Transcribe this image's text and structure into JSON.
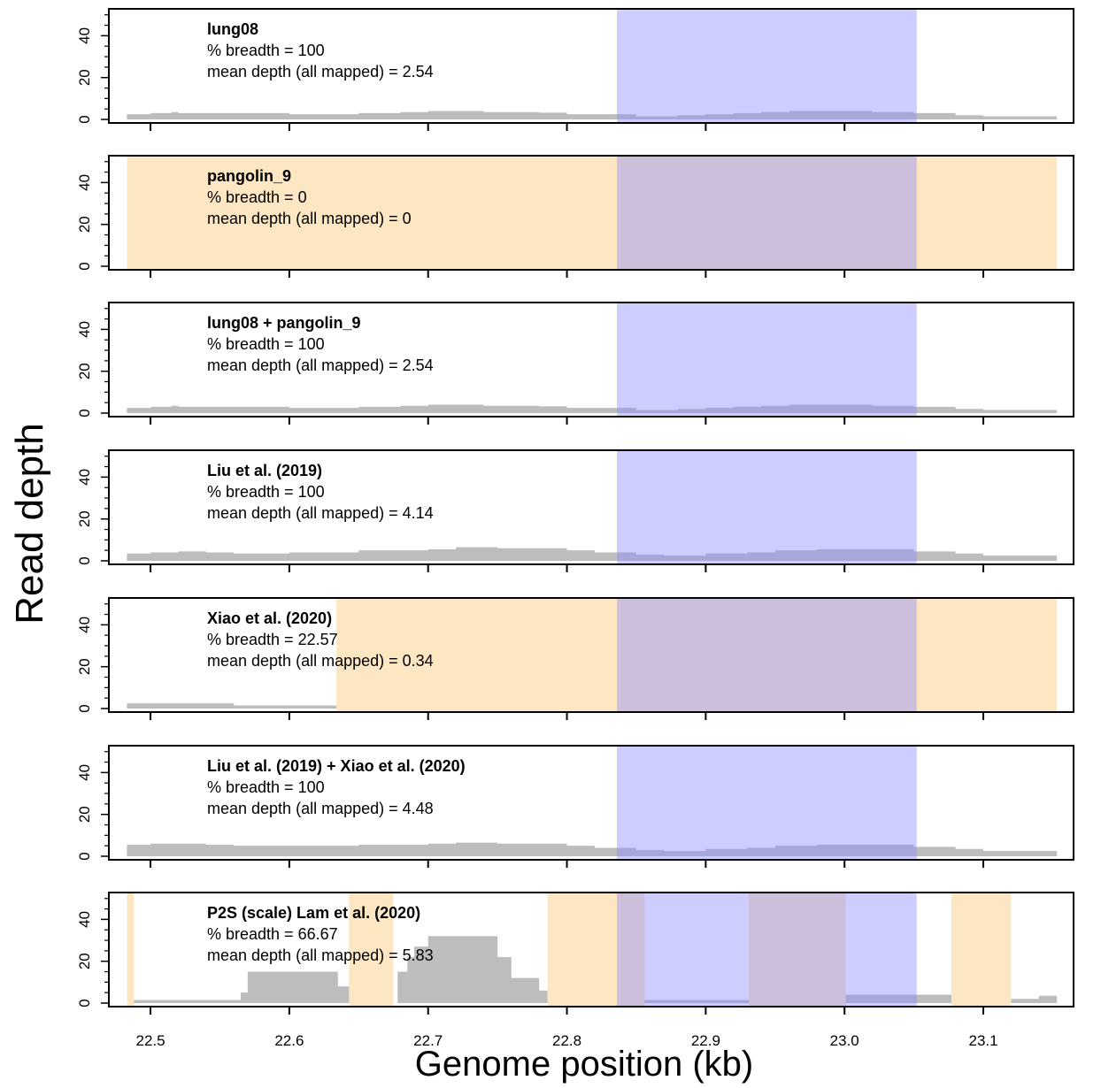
{
  "figure": {
    "ylabel": "Read depth",
    "xlabel": "Genome position (kb)",
    "colors": {
      "depth": "#bdbdbd",
      "no_coverage": "#fde3b8",
      "highlight": "#8888ff",
      "axis": "#000000"
    }
  },
  "chart_data": [
    {
      "type": "area",
      "title": "lung08",
      "stats": [
        "% breadth = 100",
        "mean depth (all mapped) = 2.54"
      ],
      "xlim": [
        22.47,
        23.165
      ],
      "ylim": [
        0,
        52
      ],
      "x_ticks": [
        22.5,
        22.6,
        22.7,
        22.8,
        22.9,
        23.0,
        23.1
      ],
      "y_ticks": [
        0,
        20,
        40
      ],
      "y_tick_labels": [
        "0",
        "20",
        "40"
      ],
      "highlight_region": [
        22.836,
        23.052
      ],
      "uncovered_regions": [],
      "depth": {
        "x": [
          22.483,
          22.5,
          22.515,
          22.52,
          22.55,
          22.6,
          22.64,
          22.65,
          22.68,
          22.7,
          22.74,
          22.78,
          22.8,
          22.85,
          22.88,
          22.9,
          22.92,
          22.94,
          22.96,
          23.0,
          23.02,
          23.05,
          23.08,
          23.1,
          23.153
        ],
        "y": [
          2.5,
          3,
          3.5,
          3,
          3,
          2.5,
          2.5,
          3,
          3.5,
          4,
          3.5,
          3.2,
          2.5,
          1.5,
          2,
          2.5,
          3,
          3.5,
          4,
          4,
          3.5,
          3,
          2,
          1.5,
          1
        ]
      }
    },
    {
      "type": "area",
      "title": "pangolin_9",
      "stats": [
        "% breadth = 0",
        "mean depth (all mapped) = 0"
      ],
      "xlim": [
        22.47,
        23.165
      ],
      "ylim": [
        0,
        52
      ],
      "x_ticks": [
        22.5,
        22.6,
        22.7,
        22.8,
        22.9,
        23.0,
        23.1
      ],
      "y_ticks": [
        0,
        20,
        40
      ],
      "y_tick_labels": [
        "0",
        "20",
        "40"
      ],
      "highlight_region": [
        22.836,
        23.052
      ],
      "uncovered_regions": [
        [
          22.483,
          23.153
        ]
      ],
      "depth": {
        "x": [
          22.483,
          23.153
        ],
        "y": [
          0,
          0
        ]
      }
    },
    {
      "type": "area",
      "title": "lung08 + pangolin_9",
      "stats": [
        "% breadth = 100",
        "mean depth (all mapped) = 2.54"
      ],
      "xlim": [
        22.47,
        23.165
      ],
      "ylim": [
        0,
        52
      ],
      "x_ticks": [
        22.5,
        22.6,
        22.7,
        22.8,
        22.9,
        23.0,
        23.1
      ],
      "y_ticks": [
        0,
        20,
        40
      ],
      "y_tick_labels": [
        "0",
        "20",
        "40"
      ],
      "highlight_region": [
        22.836,
        23.052
      ],
      "uncovered_regions": [],
      "depth": {
        "x": [
          22.483,
          22.5,
          22.515,
          22.52,
          22.55,
          22.6,
          22.64,
          22.65,
          22.68,
          22.7,
          22.74,
          22.78,
          22.8,
          22.85,
          22.88,
          22.9,
          22.92,
          22.94,
          22.96,
          23.0,
          23.02,
          23.05,
          23.08,
          23.1,
          23.153
        ],
        "y": [
          2.5,
          3,
          3.5,
          3,
          3,
          2.5,
          2.5,
          3,
          3.5,
          4,
          3.5,
          3.2,
          2.5,
          1.5,
          2,
          2.5,
          3,
          3.5,
          4,
          4,
          3.5,
          3,
          2,
          1.5,
          1
        ]
      }
    },
    {
      "type": "area",
      "title": "Liu et al. (2019)",
      "stats": [
        "% breadth = 100",
        "mean depth (all mapped) = 4.14"
      ],
      "xlim": [
        22.47,
        23.165
      ],
      "ylim": [
        0,
        52
      ],
      "x_ticks": [
        22.5,
        22.6,
        22.7,
        22.8,
        22.9,
        23.0,
        23.1
      ],
      "y_ticks": [
        0,
        20,
        40
      ],
      "y_tick_labels": [
        "0",
        "20",
        "40"
      ],
      "highlight_region": [
        22.836,
        23.052
      ],
      "uncovered_regions": [],
      "depth": {
        "x": [
          22.483,
          22.5,
          22.52,
          22.54,
          22.56,
          22.6,
          22.65,
          22.7,
          22.72,
          22.75,
          22.8,
          22.82,
          22.85,
          22.87,
          22.9,
          22.93,
          22.95,
          22.98,
          23.0,
          23.03,
          23.05,
          23.08,
          23.1,
          23.153
        ],
        "y": [
          3.5,
          4,
          4.5,
          4,
          3.5,
          4,
          5,
          5.5,
          6.5,
          6,
          5,
          4,
          3,
          2.5,
          3.5,
          4,
          5,
          5.5,
          5.5,
          5.5,
          4.5,
          3.5,
          2.5,
          2.5
        ]
      }
    },
    {
      "type": "area",
      "title": "Xiao et al. (2020)",
      "stats": [
        "% breadth = 22.57",
        "mean depth (all mapped) = 0.34"
      ],
      "xlim": [
        22.47,
        23.165
      ],
      "ylim": [
        0,
        52
      ],
      "x_ticks": [
        22.5,
        22.6,
        22.7,
        22.8,
        22.9,
        23.0,
        23.1
      ],
      "y_ticks": [
        0,
        20,
        40
      ],
      "y_tick_labels": [
        "0",
        "20",
        "40"
      ],
      "highlight_region": [
        22.836,
        23.052
      ],
      "uncovered_regions": [
        [
          22.634,
          23.153
        ]
      ],
      "depth": {
        "x": [
          22.483,
          22.56,
          22.634,
          23.153
        ],
        "y": [
          2.5,
          1.5,
          0,
          0
        ]
      }
    },
    {
      "type": "area",
      "title": "Liu et al. (2019) + Xiao et al. (2020)",
      "stats": [
        "% breadth = 100",
        "mean depth (all mapped) = 4.48"
      ],
      "xlim": [
        22.47,
        23.165
      ],
      "ylim": [
        0,
        52
      ],
      "x_ticks": [
        22.5,
        22.6,
        22.7,
        22.8,
        22.9,
        23.0,
        23.1
      ],
      "y_ticks": [
        0,
        20,
        40
      ],
      "y_tick_labels": [
        "0",
        "20",
        "40"
      ],
      "highlight_region": [
        22.836,
        23.052
      ],
      "uncovered_regions": [],
      "depth": {
        "x": [
          22.483,
          22.5,
          22.52,
          22.54,
          22.56,
          22.6,
          22.65,
          22.7,
          22.72,
          22.75,
          22.8,
          22.82,
          22.85,
          22.87,
          22.9,
          22.93,
          22.95,
          22.98,
          23.0,
          23.03,
          23.05,
          23.08,
          23.1,
          23.153
        ],
        "y": [
          5.5,
          6,
          6,
          5.5,
          5,
          5,
          5.5,
          6,
          6.5,
          6,
          5,
          4,
          3,
          2.5,
          3.5,
          4,
          5,
          5.5,
          5.5,
          5.5,
          4.5,
          3.5,
          2.5,
          2.5
        ]
      }
    },
    {
      "type": "area",
      "title": "P2S (scale) Lam et al. (2020)",
      "stats": [
        "% breadth = 66.67",
        "mean depth (all mapped) = 5.83"
      ],
      "xlim": [
        22.47,
        23.165
      ],
      "ylim": [
        0,
        52
      ],
      "x_ticks": [
        22.5,
        22.6,
        22.7,
        22.8,
        22.9,
        23.0,
        23.1
      ],
      "y_ticks": [
        0,
        20,
        40
      ],
      "y_tick_labels": [
        "0",
        "20",
        "40"
      ],
      "highlight_region": [
        22.836,
        23.052
      ],
      "uncovered_regions": [
        [
          22.483,
          22.488
        ],
        [
          22.643,
          22.675
        ],
        [
          22.786,
          22.856
        ],
        [
          22.931,
          23.001
        ],
        [
          23.077,
          23.12
        ]
      ],
      "depth": {
        "x": [
          22.483,
          22.488,
          22.56,
          22.565,
          22.57,
          22.61,
          22.635,
          22.643,
          22.675,
          22.678,
          22.685,
          22.69,
          22.7,
          22.735,
          22.75,
          22.76,
          22.78,
          22.786,
          22.856,
          22.931,
          23.001,
          23.052,
          23.077,
          23.12,
          23.14,
          23.153
        ],
        "y": [
          0,
          1.5,
          1.5,
          5,
          15,
          15,
          8,
          0,
          0,
          15,
          22,
          27,
          32,
          32,
          22,
          12,
          6,
          0,
          1.5,
          0,
          4,
          4,
          0,
          2,
          3.5,
          3.5
        ]
      }
    }
  ]
}
